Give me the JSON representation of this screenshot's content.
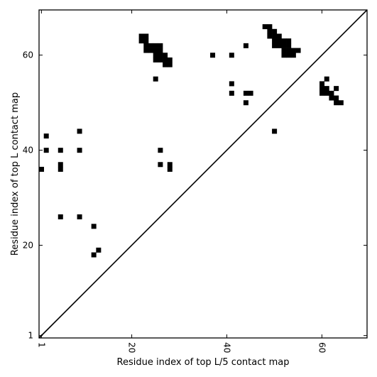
{
  "chart_data": {
    "type": "heatmap",
    "title": "",
    "xlabel": "Residue index of top L/5 contact map",
    "ylabel": "Residue index of top L contact map",
    "xlim": [
      0.5,
      69.5
    ],
    "ylim": [
      0.5,
      69.5
    ],
    "x_ticks": [
      1,
      20,
      40,
      60
    ],
    "y_ticks": [
      1,
      20,
      40,
      60
    ],
    "x_tick_labels": [
      "1",
      "20",
      "40",
      "60"
    ],
    "y_tick_labels": [
      "1",
      "20",
      "40",
      "60"
    ],
    "x_tick_rotation": -90,
    "diagonal": true,
    "grid": false,
    "colors": {
      "contact": "#000000",
      "background": "#ffffff",
      "frame": "#000000"
    },
    "contacts": [
      [
        1,
        36
      ],
      [
        2,
        43
      ],
      [
        2,
        40
      ],
      [
        5,
        40
      ],
      [
        5,
        37
      ],
      [
        5,
        36
      ],
      [
        5,
        26
      ],
      [
        9,
        44
      ],
      [
        9,
        40
      ],
      [
        9,
        26
      ],
      [
        12,
        24
      ],
      [
        12,
        18
      ],
      [
        13,
        19
      ],
      [
        22,
        64
      ],
      [
        23,
        64
      ],
      [
        22,
        63
      ],
      [
        23,
        63
      ],
      [
        23,
        62
      ],
      [
        24,
        62
      ],
      [
        25,
        62
      ],
      [
        26,
        62
      ],
      [
        23,
        61
      ],
      [
        24,
        61
      ],
      [
        25,
        61
      ],
      [
        26,
        61
      ],
      [
        25,
        60
      ],
      [
        26,
        60
      ],
      [
        27,
        60
      ],
      [
        25,
        59
      ],
      [
        26,
        59
      ],
      [
        27,
        59
      ],
      [
        28,
        59
      ],
      [
        27,
        58
      ],
      [
        28,
        58
      ],
      [
        25,
        55
      ],
      [
        26,
        40
      ],
      [
        26,
        37
      ],
      [
        28,
        37
      ],
      [
        28,
        36
      ],
      [
        37,
        60
      ],
      [
        41,
        60
      ],
      [
        41,
        54
      ],
      [
        41,
        52
      ],
      [
        44,
        62
      ],
      [
        44,
        52
      ],
      [
        45,
        52
      ],
      [
        44,
        50
      ],
      [
        48,
        66
      ],
      [
        49,
        66
      ],
      [
        49,
        65
      ],
      [
        50,
        65
      ],
      [
        49,
        64
      ],
      [
        50,
        64
      ],
      [
        51,
        64
      ],
      [
        50,
        63
      ],
      [
        51,
        63
      ],
      [
        52,
        63
      ],
      [
        53,
        63
      ],
      [
        50,
        62
      ],
      [
        51,
        62
      ],
      [
        52,
        62
      ],
      [
        53,
        62
      ],
      [
        52,
        61
      ],
      [
        53,
        61
      ],
      [
        54,
        61
      ],
      [
        55,
        61
      ],
      [
        52,
        60
      ],
      [
        53,
        60
      ],
      [
        54,
        60
      ],
      [
        50,
        44
      ],
      [
        61,
        55
      ],
      [
        60,
        54
      ],
      [
        60,
        53
      ],
      [
        61,
        53
      ],
      [
        63,
        53
      ],
      [
        60,
        52
      ],
      [
        61,
        52
      ],
      [
        62,
        52
      ],
      [
        62,
        51
      ],
      [
        63,
        51
      ],
      [
        63,
        50
      ],
      [
        64,
        50
      ]
    ]
  }
}
